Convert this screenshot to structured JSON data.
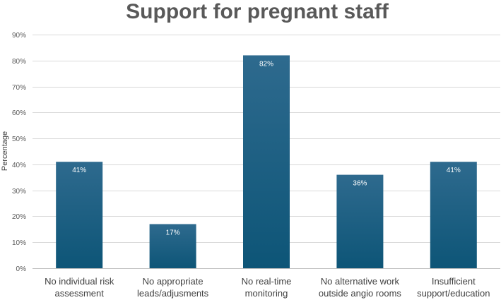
{
  "chart_data": {
    "type": "bar",
    "title": "Support for pregnant staff",
    "xlabel": "",
    "ylabel": "Percentage",
    "ylim": [
      0,
      90
    ],
    "yticks": [
      0,
      10,
      20,
      30,
      40,
      50,
      60,
      70,
      80,
      90
    ],
    "ytick_labels": [
      "0%",
      "10%",
      "20%",
      "30%",
      "40%",
      "50%",
      "60%",
      "70%",
      "80%",
      "90%"
    ],
    "grid": true,
    "categories": [
      [
        "No individual risk",
        "assessment"
      ],
      [
        "No appropriate",
        "leads/adjusments"
      ],
      [
        "No real-time",
        "monitoring"
      ],
      [
        "No alternative work",
        "outside angio rooms"
      ],
      [
        "Insufficient",
        "support/education"
      ]
    ],
    "values": [
      41,
      17,
      82,
      36,
      41
    ],
    "data_labels": [
      "41%",
      "17%",
      "82%",
      "36%",
      "41%"
    ],
    "bar_color_top": "#2e6a8e",
    "bar_color_bottom": "#0d5577"
  }
}
